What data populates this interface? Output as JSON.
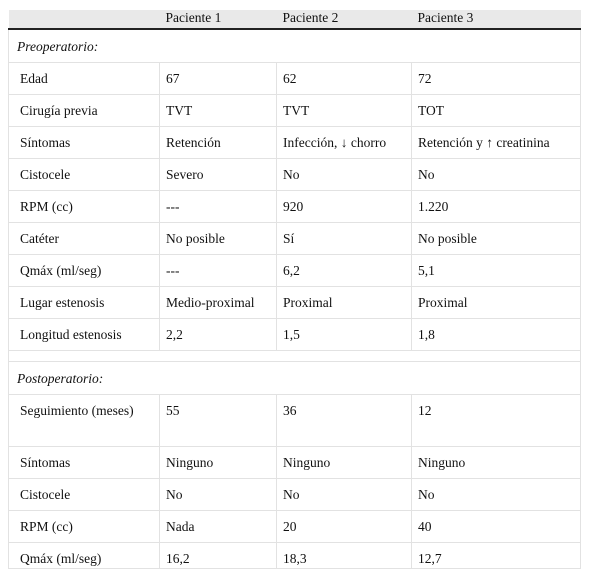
{
  "header": {
    "columns": [
      "Paciente 1",
      "Paciente 2",
      "Paciente 3"
    ]
  },
  "sections": [
    {
      "title": "Preoperatorio:",
      "rows": [
        [
          "Edad",
          "67",
          "62",
          "72"
        ],
        [
          "Cirugía previa",
          "TVT",
          "TVT",
          "TOT"
        ],
        [
          "Síntomas",
          "Retención",
          "Infección, ↓ chorro",
          "Retención y ↑ creatinina"
        ],
        [
          "Cistocele",
          "Severo",
          "No",
          "No"
        ],
        [
          "RPM (cc)",
          "---",
          "920",
          "1.220"
        ],
        [
          "Catéter",
          "No posible",
          "Sí",
          "No posible"
        ],
        [
          "Qmáx (ml/seg)",
          "---",
          "6,2",
          "5,1"
        ],
        [
          "Lugar estenosis",
          "Medio-proximal",
          "Proximal",
          "Proximal"
        ],
        [
          "Longitud estenosis",
          "2,2",
          "1,5",
          "1,8"
        ]
      ]
    },
    {
      "title": "Postoperatorio:",
      "rows": [
        [
          "Seguimiento (meses)",
          "55",
          "36",
          "12"
        ],
        [
          "Síntomas",
          "Ninguno",
          "Ninguno",
          "Ninguno"
        ],
        [
          "Cistocele",
          "No",
          "No",
          "No"
        ],
        [
          "RPM (cc)",
          "Nada",
          "20",
          "40"
        ],
        [
          "Qmáx (ml/seg)",
          "16,2",
          "18,3",
          "12,7"
        ]
      ]
    }
  ]
}
